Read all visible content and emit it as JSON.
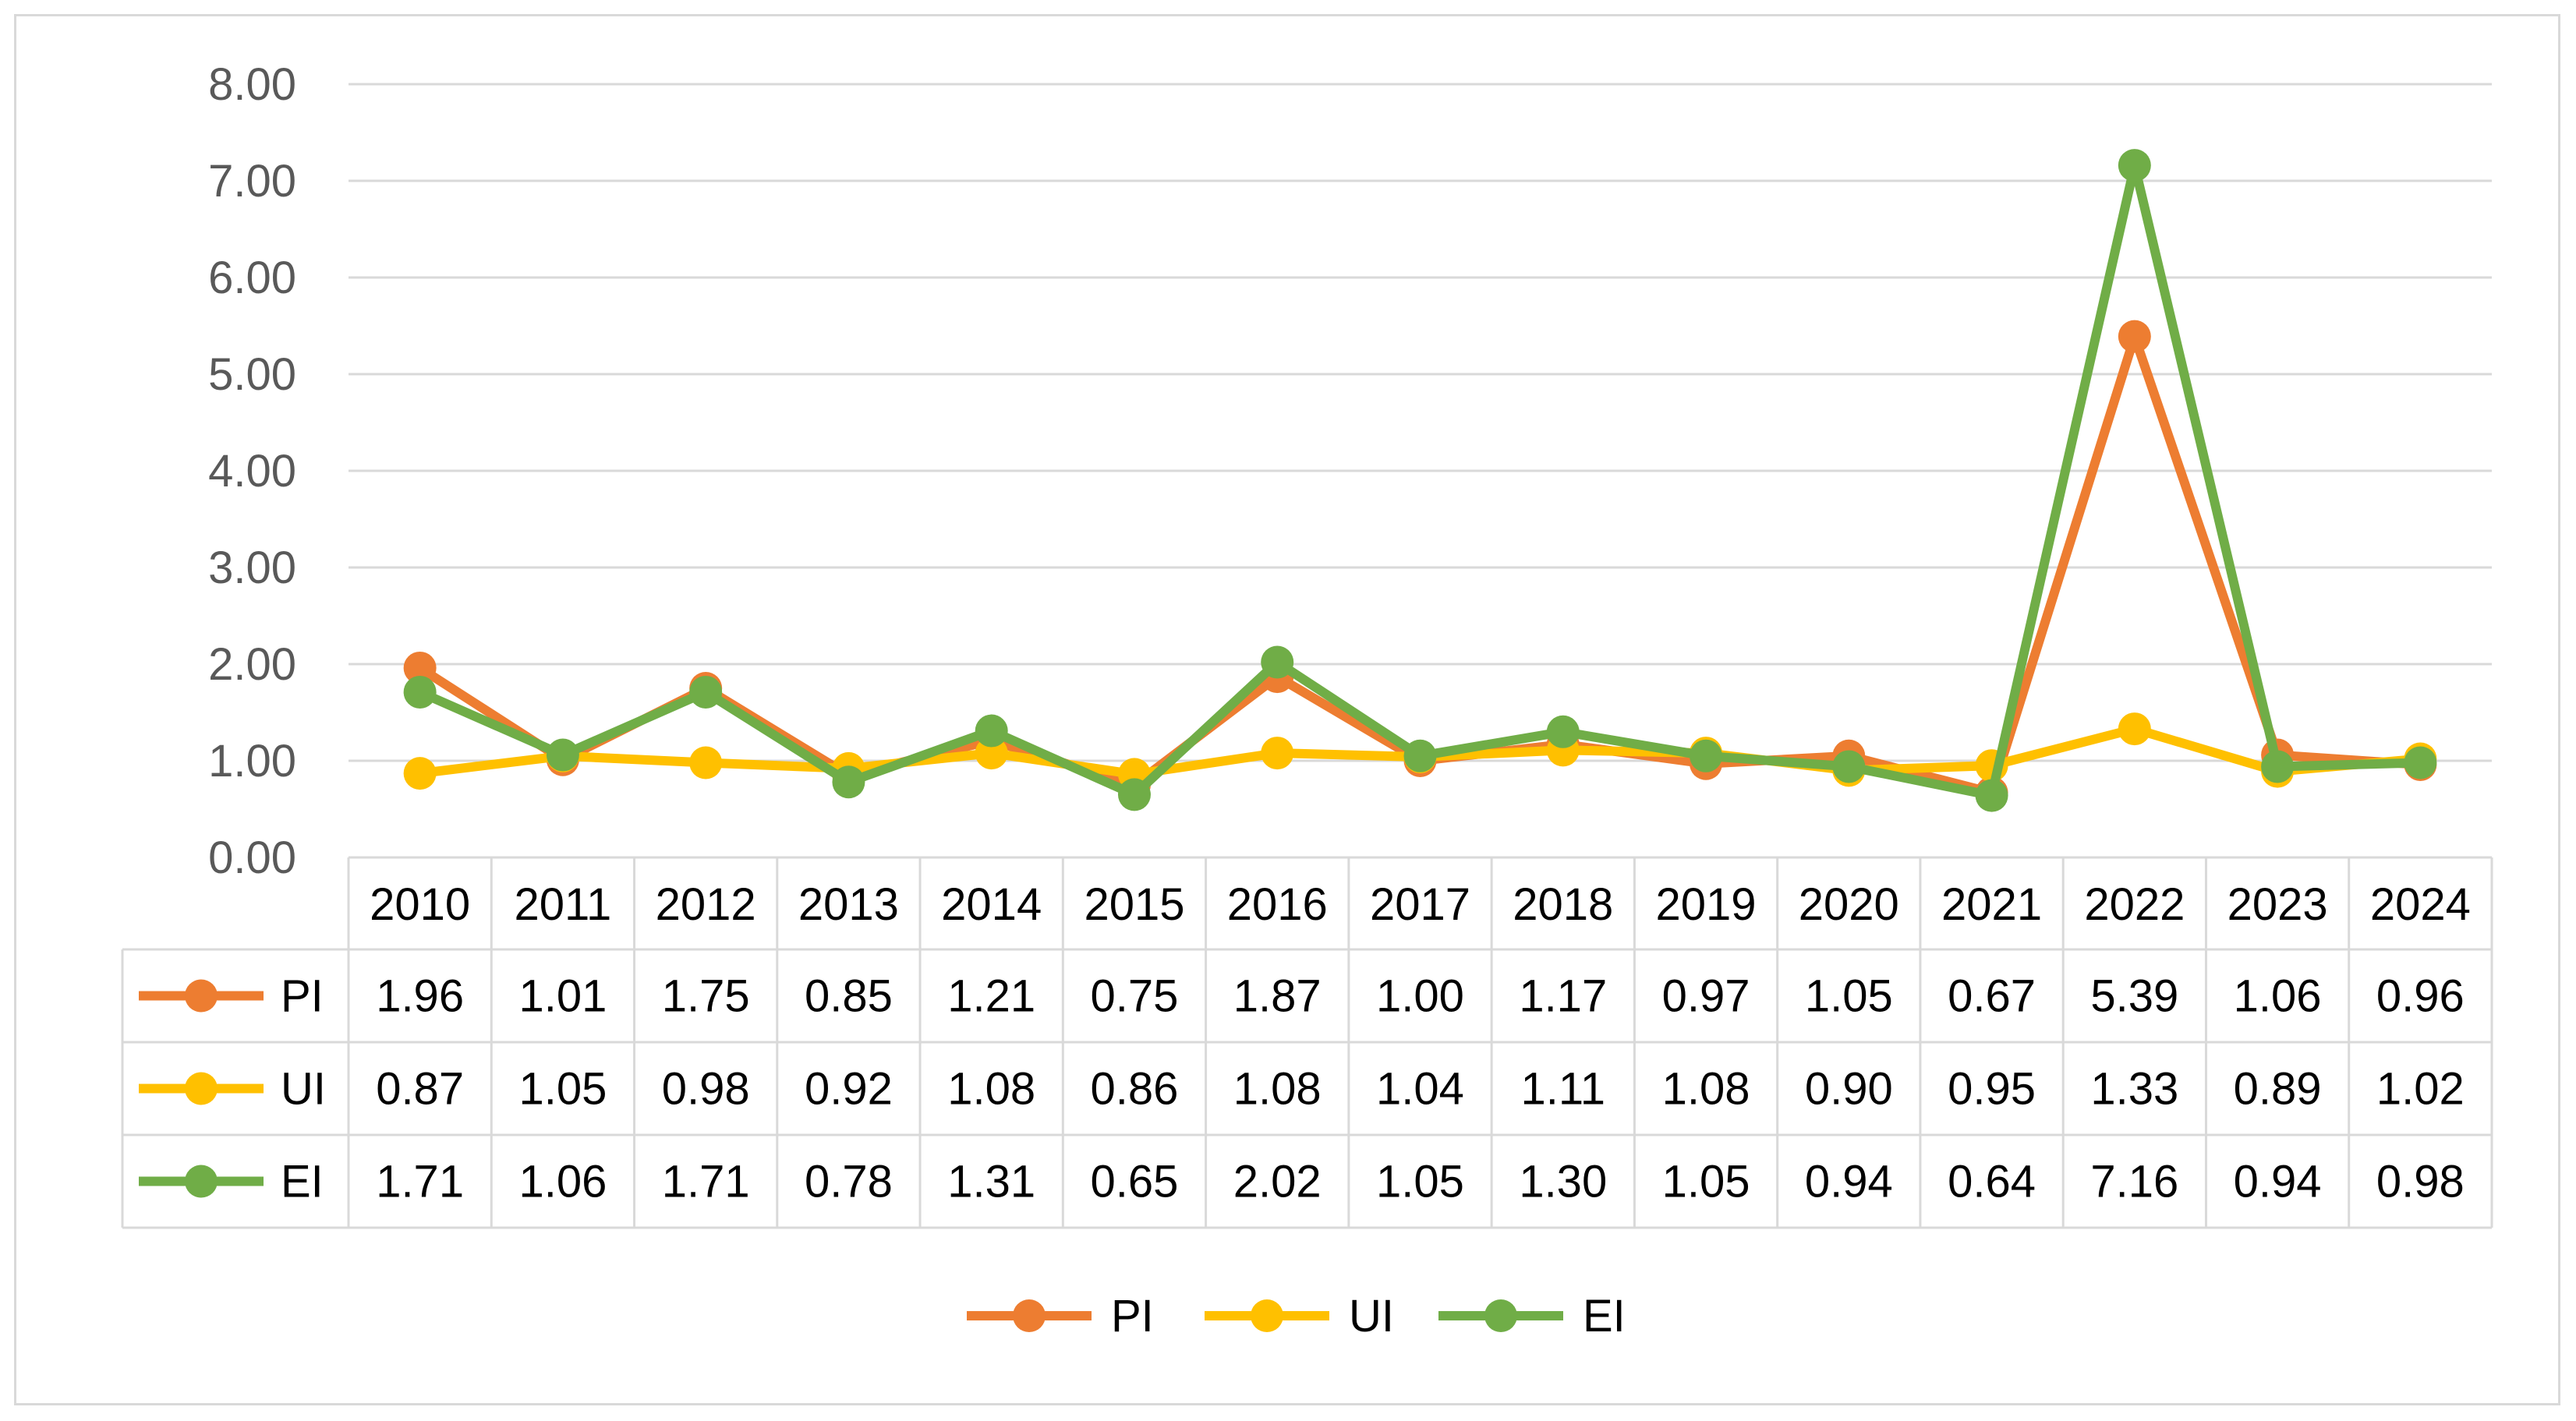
{
  "chart_data": {
    "type": "line",
    "title": "",
    "xlabel": "",
    "ylabel": "",
    "ylim": [
      0,
      8
    ],
    "yticks": [
      "0.00",
      "1.00",
      "2.00",
      "3.00",
      "4.00",
      "5.00",
      "6.00",
      "7.00",
      "8.00"
    ],
    "grid": true,
    "legend_position": "bottom",
    "data_table": true,
    "categories": [
      "2010",
      "2011",
      "2012",
      "2013",
      "2014",
      "2015",
      "2016",
      "2017",
      "2018",
      "2019",
      "2020",
      "2021",
      "2022",
      "2023",
      "2024"
    ],
    "series": [
      {
        "name": "PI",
        "color": "#ED7D31",
        "values": [
          1.96,
          1.01,
          1.75,
          0.85,
          1.21,
          0.75,
          1.87,
          1.0,
          1.17,
          0.97,
          1.05,
          0.67,
          5.39,
          1.06,
          0.96
        ],
        "labels": [
          "1.96",
          "1.01",
          "1.75",
          "0.85",
          "1.21",
          "0.75",
          "1.87",
          "1.00",
          "1.17",
          "0.97",
          "1.05",
          "0.67",
          "5.39",
          "1.06",
          "0.96"
        ]
      },
      {
        "name": "UI",
        "color": "#FFC000",
        "values": [
          0.87,
          1.05,
          0.98,
          0.92,
          1.08,
          0.86,
          1.08,
          1.04,
          1.11,
          1.08,
          0.9,
          0.95,
          1.33,
          0.89,
          1.02
        ],
        "labels": [
          "0.87",
          "1.05",
          "0.98",
          "0.92",
          "1.08",
          "0.86",
          "1.08",
          "1.04",
          "1.11",
          "1.08",
          "0.90",
          "0.95",
          "1.33",
          "0.89",
          "1.02"
        ]
      },
      {
        "name": "EI",
        "color": "#70AD47",
        "values": [
          1.71,
          1.06,
          1.71,
          0.78,
          1.31,
          0.65,
          2.02,
          1.05,
          1.3,
          1.05,
          0.94,
          0.64,
          7.16,
          0.94,
          0.98
        ],
        "labels": [
          "1.71",
          "1.06",
          "1.71",
          "0.78",
          "1.31",
          "0.65",
          "2.02",
          "1.05",
          "1.30",
          "1.05",
          "0.94",
          "0.64",
          "7.16",
          "0.94",
          "0.98"
        ]
      }
    ]
  }
}
